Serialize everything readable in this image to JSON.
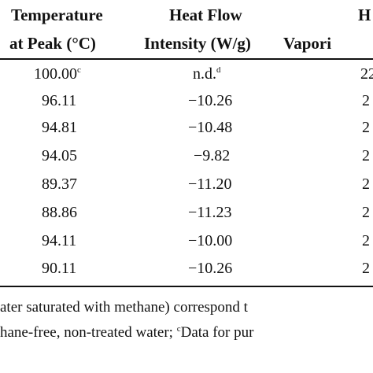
{
  "table": {
    "columns": [
      {
        "line1": "Temperature",
        "line2": "at Peak (°C)"
      },
      {
        "line1": "Heat Flow",
        "line2": "Intensity (W/g)"
      },
      {
        "line1": "H",
        "line2": "Vapori"
      }
    ],
    "rows": [
      {
        "temp": "100.00",
        "temp_sup": "c",
        "flow": "n.d.",
        "flow_sup": "d",
        "third": "22"
      },
      {
        "temp": "96.11",
        "temp_sup": "",
        "flow": "−10.26",
        "flow_sup": "",
        "third": "2"
      },
      {
        "temp": "94.81",
        "temp_sup": "",
        "flow": "−10.48",
        "flow_sup": "",
        "third": "2"
      },
      {
        "temp": "94.05",
        "temp_sup": "",
        "flow": "−9.82",
        "flow_sup": "",
        "third": "2"
      },
      {
        "temp": "89.37",
        "temp_sup": "",
        "flow": "−11.20",
        "flow_sup": "",
        "third": "2"
      },
      {
        "temp": "88.86",
        "temp_sup": "",
        "flow": "−11.23",
        "flow_sup": "",
        "third": "2"
      },
      {
        "temp": "94.11",
        "temp_sup": "",
        "flow": "−10.00",
        "flow_sup": "",
        "third": "2"
      },
      {
        "temp": "90.11",
        "temp_sup": "",
        "flow": "−10.26",
        "flow_sup": "",
        "third": "2"
      }
    ]
  },
  "footnotes": {
    "line1": "ater saturated with methane) correspond t",
    "line2_a": "hane-free, non-treated water; ",
    "line2_sup": "c",
    "line2_b": "Data for pur"
  }
}
